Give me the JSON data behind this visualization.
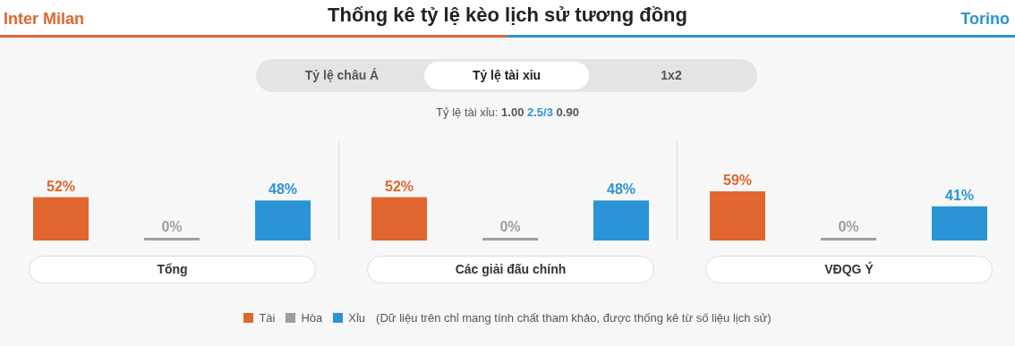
{
  "chart_data": [
    {
      "type": "other",
      "title": "Thống kê tỷ lệ kèo lịch sử tương đồng",
      "annotations": [
        "Inter Milan",
        "Torino",
        "Tỷ lệ châu Á",
        "Tỷ lệ tài xỉu",
        "1x2",
        "Tỷ lệ tài xỉu:",
        "1.00",
        "2.5/3",
        "0.90",
        "(Dữ liệu trên chỉ mang tính chất tham khảo, được thống kê từ số liệu lịch sử)"
      ]
    },
    {
      "type": "bar",
      "stacked": true,
      "title": "Tổng",
      "categories": [
        null,
        null,
        null
      ],
      "series": [
        {
          "color": "#e0662f",
          "values": [
            52,
            null,
            null
          ],
          "value_labels": [
            "52%",
            null,
            null
          ]
        },
        {
          "color": "#9e9e9e",
          "values": [
            null,
            0,
            null
          ],
          "value_labels": [
            null,
            "0%",
            null
          ]
        },
        {
          "color": "#2a94d6",
          "values": [
            null,
            null,
            48
          ],
          "value_labels": [
            null,
            null,
            "48%"
          ]
        }
      ]
    },
    {
      "type": "bar",
      "stacked": true,
      "title": "Các giải đấu chính",
      "categories": [
        null,
        null,
        null
      ],
      "series": [
        {
          "color": "#e0662f",
          "values": [
            52,
            null,
            null
          ],
          "value_labels": [
            "52%",
            null,
            null
          ]
        },
        {
          "color": "#9e9e9e",
          "values": [
            null,
            0,
            null
          ],
          "value_labels": [
            null,
            "0%",
            null
          ]
        },
        {
          "color": "#2a94d6",
          "values": [
            null,
            null,
            48
          ],
          "value_labels": [
            null,
            null,
            "48%"
          ]
        }
      ]
    },
    {
      "type": "bar",
      "stacked": true,
      "title": "VĐQG Ý",
      "categories": [
        null,
        null,
        null
      ],
      "legend": "bottom",
      "series": [
        {
          "name": "Tài",
          "color": "#e0662f",
          "values": [
            59,
            null,
            null
          ],
          "value_labels": [
            "59%",
            null,
            null
          ]
        },
        {
          "name": "Hòa",
          "color": "#9e9e9e",
          "values": [
            null,
            0,
            null
          ],
          "value_labels": [
            null,
            "0%",
            null
          ]
        },
        {
          "name": "Xỉu",
          "color": "#2a94d6",
          "values": [
            null,
            null,
            41
          ],
          "value_labels": [
            null,
            null,
            "41%"
          ]
        }
      ]
    }
  ]
}
